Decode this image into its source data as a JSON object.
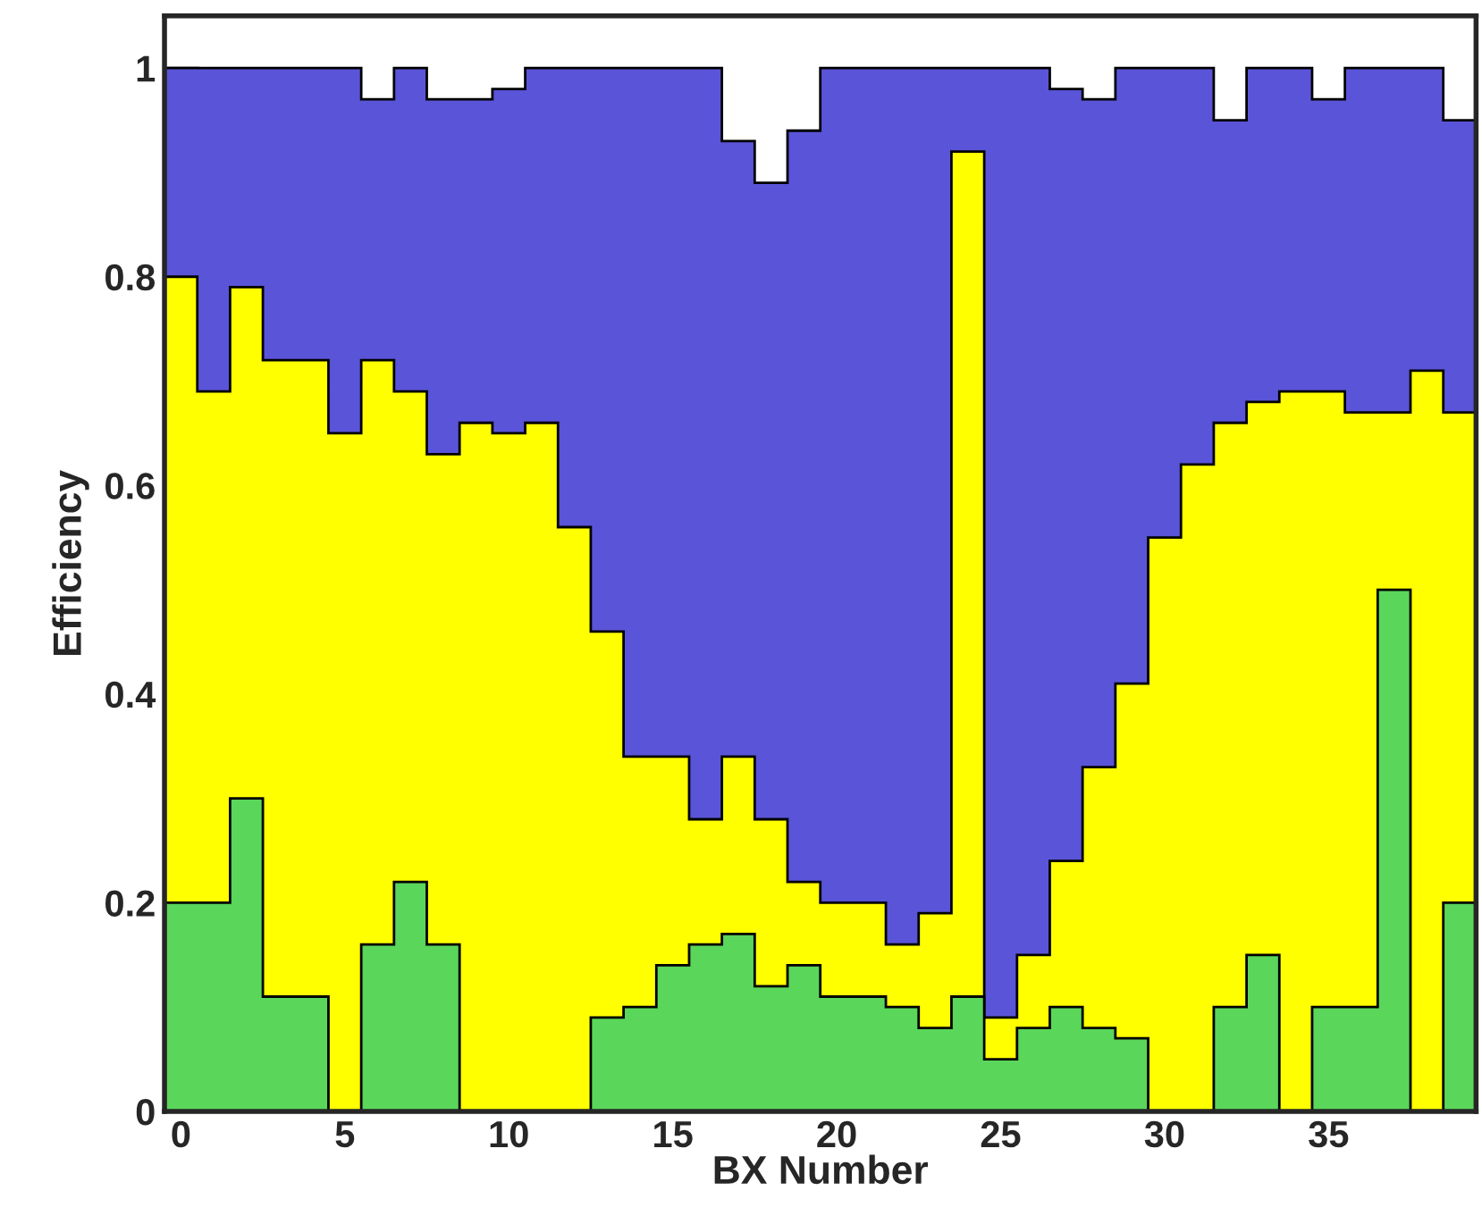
{
  "chart_data": {
    "type": "histogram",
    "xlabel": "BX Number",
    "ylabel": "Efficiency",
    "bins": [
      -0.5,
      0.5,
      1.5,
      2.5,
      3.5,
      4.5,
      5.5,
      6.5,
      7.5,
      8.5,
      9.5,
      10.5,
      11.5,
      12.5,
      13.5,
      14.5,
      15.5,
      16.5,
      17.5,
      18.5,
      19.5,
      20.5,
      21.5,
      22.5,
      23.5,
      24.5,
      25.5,
      26.5,
      27.5,
      28.5,
      29.5,
      30.5,
      31.5,
      32.5,
      33.5,
      34.5,
      35.5,
      36.5,
      37.5,
      38.5,
      39.5
    ],
    "series": [
      {
        "color": "#5a54d8",
        "values": [
          1,
          1,
          1,
          1,
          1,
          1,
          0.97,
          1,
          0.97,
          0.97,
          0.98,
          1,
          1,
          1,
          1,
          1,
          1,
          0.93,
          0.89,
          0.94,
          1,
          1,
          1,
          1,
          1,
          1,
          1,
          0.98,
          0.97,
          1,
          1,
          1,
          0.95,
          1,
          1,
          0.97,
          1,
          1,
          1,
          0.95
        ]
      },
      {
        "color": "#ffff00",
        "values": [
          0.8,
          0.69,
          0.79,
          0.72,
          0.72,
          0.65,
          0.72,
          0.69,
          0.63,
          0.66,
          0.65,
          0.66,
          0.56,
          0.46,
          0.34,
          0.34,
          0.28,
          0.34,
          0.28,
          0.22,
          0.2,
          0.2,
          0.16,
          0.19,
          0.92,
          0.09,
          0.15,
          0.24,
          0.33,
          0.41,
          0.55,
          0.62,
          0.66,
          0.68,
          0.69,
          0.69,
          0.67,
          0.67,
          0.71,
          0.67
        ]
      },
      {
        "color": "#5ad65a",
        "values": [
          0.2,
          0.2,
          0.3,
          0.11,
          0.11,
          0,
          0.16,
          0.22,
          0.16,
          0,
          0,
          0,
          0,
          0.09,
          0.1,
          0.14,
          0.16,
          0.17,
          0.12,
          0.14,
          0.11,
          0.11,
          0.1,
          0.08,
          0.11,
          0.05,
          0.08,
          0.1,
          0.08,
          0.07,
          0,
          0,
          0.1,
          0.15,
          0,
          0.1,
          0.1,
          0.5,
          0,
          0.2
        ]
      }
    ],
    "xlim": [
      -0.5,
      39.5
    ],
    "xticks": [
      0,
      5,
      10,
      15,
      20,
      25,
      30,
      35
    ],
    "ylim": [
      0,
      1.05
    ],
    "yticks": [
      0,
      0.2,
      0.4,
      0.6,
      0.8,
      1
    ],
    "grid": false,
    "legend": false
  }
}
